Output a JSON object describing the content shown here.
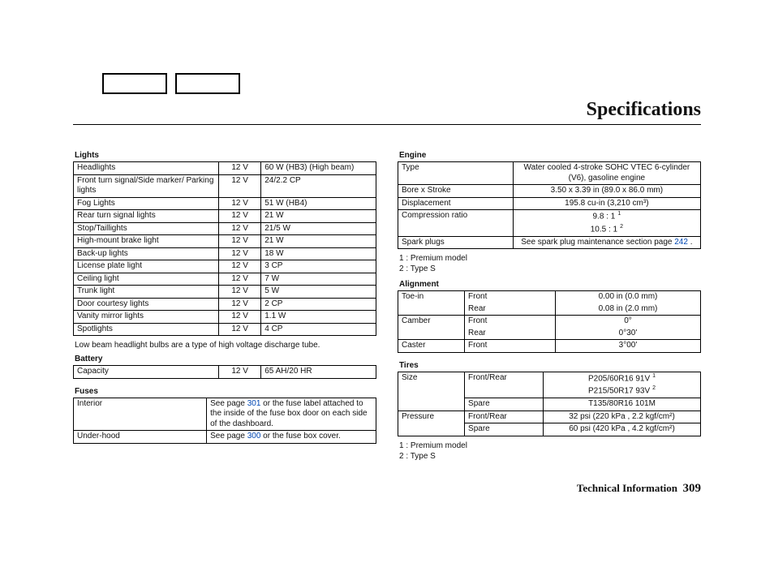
{
  "title": "Specifications",
  "footer": {
    "label": "Technical Information",
    "pageno": "309"
  },
  "lights": {
    "header": "Lights",
    "rows": [
      {
        "n": "Headlights",
        "v": "12 V",
        "s": "60 W (HB3) (High beam)"
      },
      {
        "n": "Front turn signal/Side marker/ Parking lights",
        "v": "12 V",
        "s": "24/2.2 CP"
      },
      {
        "n": "Fog Lights",
        "v": "12 V",
        "s": "51 W (HB4)"
      },
      {
        "n": "Rear turn signal lights",
        "v": "12 V",
        "s": "21 W"
      },
      {
        "n": "Stop/Taillights",
        "v": "12 V",
        "s": "21/5 W"
      },
      {
        "n": "High-mount brake light",
        "v": "12 V",
        "s": "21 W"
      },
      {
        "n": "Back-up lights",
        "v": "12 V",
        "s": "18 W"
      },
      {
        "n": "License plate light",
        "v": "12 V",
        "s": "3 CP"
      },
      {
        "n": "Ceiling light",
        "v": "12 V",
        "s": "7 W"
      },
      {
        "n": "Trunk light",
        "v": "12 V",
        "s": "5 W"
      },
      {
        "n": "Door courtesy lights",
        "v": "12 V",
        "s": "2 CP"
      },
      {
        "n": "Vanity mirror lights",
        "v": "12 V",
        "s": "1.1 W"
      },
      {
        "n": "Spotlights",
        "v": "12 V",
        "s": "4 CP"
      }
    ],
    "note": "Low beam headlight bulbs are a type of high voltage discharge tube."
  },
  "battery": {
    "header": "Battery",
    "rows": [
      {
        "n": "Capacity",
        "v": "12 V",
        "s": "65 AH/20 HR"
      }
    ]
  },
  "fuses": {
    "header": "Fuses",
    "interior": {
      "label": "Interior",
      "pre": "See page ",
      "link": "301",
      "post": " or the fuse label attached to the inside of the fuse box door on each side of the dashboard."
    },
    "underhood": {
      "label": "Under-hood",
      "pre": "See page ",
      "link": "300",
      "post": " or the fuse box cover."
    }
  },
  "engine": {
    "header": "Engine",
    "type": {
      "label": "Type",
      "value": "Water cooled 4-stroke SOHC VTEC 6-cylinder (V6), gasoline engine"
    },
    "bore": {
      "label": "Bore x Stroke",
      "value": "3.50 x 3.39 in (89.0 x 86.0 mm)"
    },
    "disp": {
      "label": "Displacement",
      "value": "195.8 cu-in (3,210 cm³)"
    },
    "comp": {
      "label": "Compression ratio",
      "v1": "9.8 : 1",
      "s1": "1",
      "v2": "10.5 : 1",
      "s2": "2"
    },
    "spark": {
      "label": "Spark plugs",
      "pre": "See spark plug maintenance section page ",
      "link": "242",
      "post": " ."
    },
    "legend": [
      "1 : Premium model",
      "2 : Type S"
    ]
  },
  "alignment": {
    "header": "Alignment",
    "rows": [
      {
        "n": "Toe-in",
        "p": "Front",
        "v": "0.00 in (0.0 mm)"
      },
      {
        "n": "",
        "p": "Rear",
        "v": "0.08 in (2.0 mm)"
      },
      {
        "n": "Camber",
        "p": "Front",
        "v": "0°"
      },
      {
        "n": "",
        "p": "Rear",
        "v": "0°30'"
      },
      {
        "n": "Caster",
        "p": "Front",
        "v": "3°00'"
      }
    ]
  },
  "tires": {
    "header": "Tires",
    "size": {
      "label": "Size",
      "fr": "Front/Rear",
      "v1": "P205/60R16 91V",
      "s1": "1",
      "v2": "P215/50R17 93V",
      "s2": "2",
      "sp": "Spare",
      "spv": "T135/80R16 101M"
    },
    "press": {
      "label": "Pressure",
      "fr": "Front/Rear",
      "frv": "32 psi (220 kPa , 2.2 kgf/cm²)",
      "sp": "Spare",
      "spv": "60 psi (420 kPa , 4.2 kgf/cm²)"
    },
    "legend": [
      "1 : Premium model",
      "2 : Type S"
    ]
  }
}
